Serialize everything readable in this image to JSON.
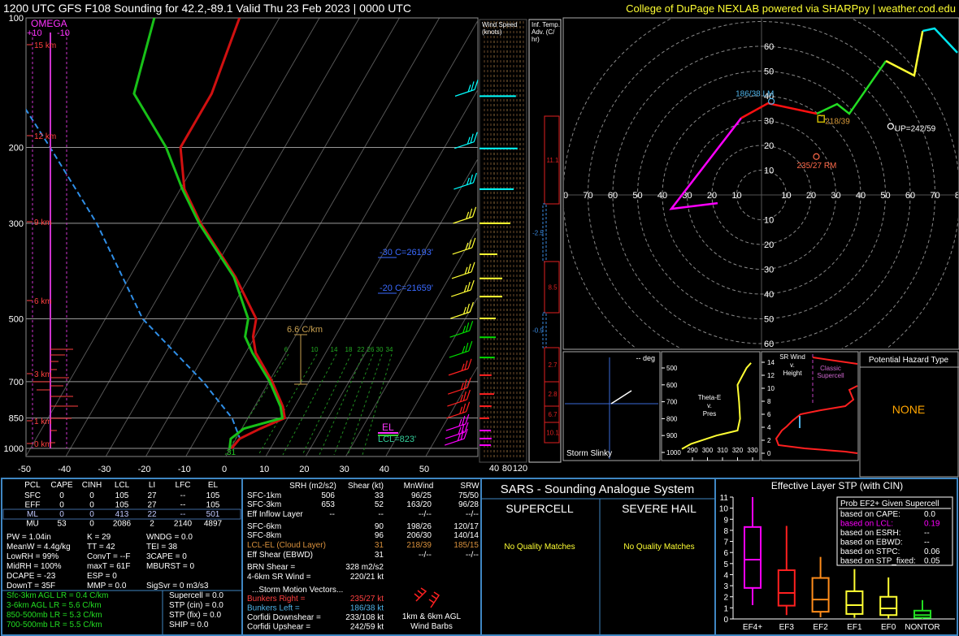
{
  "header": {
    "title": "1200 UTC GFS F108 Sounding for 42.2,-89.1  Valid  Thu 23 Feb 2023 | 0000 UTC",
    "credit": "College of DuPage NEXLAB powered via SHARPpy | weather.cod.edu"
  },
  "skewt": {
    "pressure_ticks": [
      100,
      200,
      300,
      500,
      700,
      850,
      1000
    ],
    "temp_ticks": [
      -50,
      -40,
      -30,
      -20,
      -10,
      0,
      10,
      20,
      30,
      40,
      50
    ],
    "height_labels": [
      "15 km",
      "12 km",
      "9 km",
      "6 km",
      "3 km",
      "1 km",
      "0 km"
    ],
    "omega": {
      "title": "OMEGA",
      "left": "+10",
      "right": "-10"
    },
    "annotations": {
      "minus30": "-30 C=26193'",
      "minus20": "-20 C=21659'",
      "lapse": "6.6 C/km",
      "el": "EL",
      "lcl": "LCL=823'",
      "sfc": "31"
    },
    "mixing_ratio_labels": [
      "6",
      "10",
      "14",
      "18",
      "22",
      "26",
      "30",
      "34"
    ],
    "pressure": [
      100,
      150,
      200,
      250,
      300,
      400,
      500,
      550,
      600,
      700,
      800,
      850,
      900,
      950,
      1000
    ],
    "temperature": [
      -60,
      -56,
      -56,
      -49,
      -40,
      -23.5,
      -12.3,
      -10.5,
      -7.5,
      0.8,
      7.1,
      9.2,
      4.6,
      0.9,
      0.3
    ],
    "dewpoint": [
      -81.3,
      -75.4,
      -59.6,
      -49.5,
      -40.4,
      -23.9,
      -14.3,
      -12.5,
      -8.3,
      0.2,
      6.5,
      8.6,
      0.5,
      -1.3,
      -0.2
    ],
    "parcel_pressure": [
      150,
      200,
      300,
      500,
      700,
      850,
      950
    ],
    "parcel_temperature": [
      -105,
      -88.6,
      -66,
      -40.7,
      -16.5,
      -4,
      1
    ]
  },
  "wind_speed": {
    "title": [
      "Wind Speed",
      "(knots)"
    ],
    "ticks": [
      40,
      80,
      120
    ],
    "pressure": [
      152,
      201,
      250,
      300,
      354,
      403,
      444,
      499,
      552,
      615,
      676,
      748,
      798,
      851,
      909,
      949,
      983
    ],
    "speed": [
      107,
      112,
      100,
      90,
      50,
      65,
      65,
      45,
      45,
      42,
      32,
      40,
      32,
      25,
      30,
      32,
      30
    ],
    "colors": [
      "#00ffff",
      "#00ffff",
      "#00ffff",
      "#ffff33",
      "#ffff33",
      "#ffff33",
      "#ffff33",
      "#ffff33",
      "#00dd00",
      "#00dd00",
      "#ff2020",
      "#ff2020",
      "#ff2020",
      "#ff2020",
      "#ff00ff",
      "#ff00ff",
      "#ff00ff"
    ]
  },
  "temp_advection": {
    "title": [
      "Inf. Temp.",
      "Adv. (C/",
      "hr)"
    ],
    "values": [
      11.1,
      -2.5,
      8.5,
      -0.9,
      2.7,
      2.8,
      6.7,
      10.1
    ]
  },
  "hodograph": {
    "rings": [
      10,
      20,
      30,
      40,
      50,
      60,
      70,
      80
    ],
    "segments": [
      {
        "color": "#ff00ff",
        "u": [
          -17.7,
          -36.4,
          -8.2
        ],
        "v": [
          -3.3,
          -5.6,
          31
        ]
      },
      {
        "color": "#ff1010",
        "u": [
          -8.2,
          2.6,
          22.3
        ],
        "v": [
          31,
          37,
          32.8
        ]
      },
      {
        "color": "#22dd22",
        "u": [
          22.3,
          30.5,
          35.4,
          50.2
        ],
        "v": [
          32.8,
          36.7,
          32.8,
          54.1
        ]
      },
      {
        "color": "#ffff33",
        "u": [
          50.2,
          61.6,
          65
        ],
        "v": [
          54.1,
          48.2,
          66.2
        ]
      },
      {
        "color": "#00e5ee",
        "u": [
          65,
          69.8,
          79
        ],
        "v": [
          66.2,
          67.2,
          57.4
        ]
      }
    ],
    "markers": [
      {
        "label": "186/38 LM",
        "dir": 186,
        "spd": 38,
        "color": "#4fb3e8"
      },
      {
        "label": "218/39",
        "dir": 218,
        "spd": 39,
        "color": "#d89a3a"
      },
      {
        "label": "235/27 RM",
        "dir": 235,
        "spd": 27,
        "color": "#ff6a4a"
      },
      {
        "label": "UP=242/59",
        "dir": 242,
        "spd": 59,
        "color": "#ffffff"
      }
    ]
  },
  "slinky": {
    "deg": "-- deg",
    "title": "Storm Slinky"
  },
  "thetae": {
    "title": [
      "Theta-E",
      "v.",
      "Pres"
    ],
    "pticks": [
      500,
      600,
      700,
      800,
      900,
      1000
    ],
    "xticks": [
      290,
      300,
      310,
      320,
      330
    ],
    "pressure": [
      470,
      500,
      550,
      600,
      700,
      800,
      870,
      900,
      950,
      980
    ],
    "values": [
      329,
      326,
      323,
      320,
      321,
      321.7,
      320,
      306,
      289,
      283
    ]
  },
  "srwind": {
    "title": [
      "SR Wind",
      "v.",
      "Height"
    ],
    "label": [
      "Classic",
      "Supercell"
    ],
    "yticks": [
      0,
      2,
      4,
      6,
      8,
      10,
      12,
      14
    ]
  },
  "hazard": {
    "title": "Potential Hazard Type",
    "value": "NONE"
  },
  "parcels": {
    "header": [
      "PCL",
      "CAPE",
      "CINH",
      "LCL",
      "LI",
      "LFC",
      "EL"
    ],
    "rows": [
      [
        "SFC",
        0,
        0,
        105,
        27,
        "--",
        105
      ],
      [
        "EFF",
        0,
        0,
        105,
        27,
        "--",
        105
      ],
      [
        "ML",
        0,
        0,
        413,
        22,
        "--",
        501
      ],
      [
        "MU",
        53,
        0,
        2086,
        2,
        2140,
        4897
      ]
    ]
  },
  "indices": [
    [
      "PW = 1.04in",
      "K = 29",
      "WNDG = 0.0"
    ],
    [
      "MeanW = 4.4g/kg",
      "TT = 42",
      "TEI = 38"
    ],
    [
      "LowRH = 99%",
      "ConvT = --F",
      "3CAPE = 0"
    ],
    [
      "MidRH = 100%",
      "maxT = 61F",
      "MBURST = 0"
    ],
    [
      "DCAPE = -23",
      "ESP = 0"
    ],
    [
      "DownT = 35F",
      "MMP = 0.0",
      "SigSvr = 0 m3/s3"
    ]
  ],
  "lapse_rates": [
    "Sfc-3km AGL LR = 0.4 C/km",
    "3-6km AGL LR = 5.6 C/km",
    "850-500mb LR = 5.3 C/km",
    "700-500mb LR = 5.5 C/km"
  ],
  "composites": [
    "Supercell = 0.0",
    "STP (cin) = 0.0",
    "STP (fix) = 0.0",
    "SHIP = 0.0"
  ],
  "kinematics": {
    "header": [
      "SRH (m2/s2)",
      "Shear (kt)",
      "MnWind",
      "SRW"
    ],
    "rows": [
      {
        "label": "SFC-1km",
        "srh": "506",
        "shear": "33",
        "mnwind": "96/25",
        "srw": "75/50"
      },
      {
        "label": "SFC-3km",
        "srh": "653",
        "shear": "52",
        "mnwind": "163/20",
        "srw": "96/28"
      },
      {
        "label": "Eff Inflow Layer",
        "srh": "--",
        "shear": "--",
        "mnwind": "--/--",
        "srw": "--/--"
      },
      {
        "label": "SFC-6km",
        "shear": "90",
        "mnwind": "198/26",
        "srw": "120/17"
      },
      {
        "label": "SFC-8km",
        "shear": "96",
        "mnwind": "206/30",
        "srw": "140/14"
      },
      {
        "label": "LCL-EL (Cloud Layer)",
        "shear": "31",
        "mnwind": "218/39",
        "srw": "185/15",
        "color": "#d8903c"
      },
      {
        "label": "Eff Shear (EBWD)",
        "shear": "31",
        "mnwind": "--/--",
        "srw": "--/--"
      }
    ],
    "brn": {
      "label": "BRN Shear =",
      "value": "328 m2/s2"
    },
    "sr46": {
      "label": "4-6km SR Wind =",
      "value": "220/21 kt"
    },
    "motion_title": "...Storm Motion Vectors...",
    "motion": [
      {
        "label": "Bunkers Right =",
        "value": "235/27 kt",
        "color": "#ff4040"
      },
      {
        "label": "Bunkers Left =",
        "value": "186/38 kt",
        "color": "#4fb3e8"
      },
      {
        "label": "Corfidi Downshear =",
        "value": "233/108 kt"
      },
      {
        "label": "Corfidi Upshear =",
        "value": "242/59 kt"
      }
    ],
    "barbs_label": [
      "1km & 6km AGL",
      "Wind Barbs"
    ]
  },
  "sars": {
    "title": "SARS - Sounding Analogue System",
    "supercell": "SUPERCELL",
    "hail": "SEVERE HAIL",
    "supercell_result": "No Quality Matches",
    "hail_result": "No Quality Matches"
  },
  "chart_data": {
    "type": "box",
    "title": "Effective Layer STP (with CIN)",
    "categories": [
      "EF4+",
      "EF3",
      "EF2",
      "EF1",
      "EF0",
      "NONTOR"
    ],
    "values": [
      [
        1.25,
        2.8,
        5.35,
        8.3,
        11
      ],
      [
        0.35,
        1.2,
        2.35,
        4.4,
        8.4
      ],
      [
        0.15,
        0.65,
        1.75,
        3.7,
        5.6
      ],
      [
        0.1,
        0.45,
        1.25,
        2.5,
        4.5
      ],
      [
        0.05,
        0.35,
        0.95,
        2.0,
        3.75
      ],
      [
        0,
        0.1,
        0.35,
        0.75,
        1.7
      ]
    ],
    "colors": [
      "#ff00ff",
      "#ff2020",
      "#ff8c1a",
      "#ffff33",
      "#ffff33",
      "#22dd22"
    ],
    "ylim": [
      0,
      11
    ],
    "yticks": [
      0,
      1,
      2,
      3,
      4,
      5,
      6,
      7,
      8,
      9,
      10,
      11
    ]
  },
  "stp_probability": {
    "title": "Prob EF2+ Given Supercell",
    "rows": [
      {
        "label": "based on CAPE:",
        "value": "0.0"
      },
      {
        "label": "based on LCL:",
        "value": "0.19",
        "color": "#ff00ff"
      },
      {
        "label": "based on ESRH:",
        "value": "--"
      },
      {
        "label": "based on EBWD:",
        "value": "--"
      },
      {
        "label": "based on STPC:",
        "value": "0.06"
      },
      {
        "label": "based on STP_fixed:",
        "value": "0.05"
      }
    ]
  }
}
